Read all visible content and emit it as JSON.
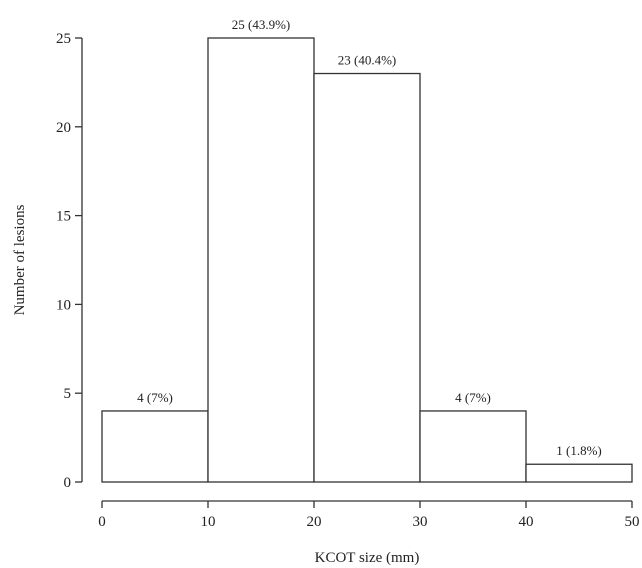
{
  "chart_data": {
    "type": "bar",
    "title": "",
    "xlabel": "KCOT size (mm)",
    "ylabel": "Number of lesions",
    "bins": [
      {
        "x0": 0,
        "x1": 10,
        "value": 4,
        "label": "4 (7%)"
      },
      {
        "x0": 10,
        "x1": 20,
        "value": 25,
        "label": "25 (43.9%)"
      },
      {
        "x0": 20,
        "x1": 30,
        "value": 23,
        "label": "23 (40.4%)"
      },
      {
        "x0": 30,
        "x1": 40,
        "value": 4,
        "label": "4 (7%)"
      },
      {
        "x0": 40,
        "x1": 50,
        "value": 1,
        "label": "1 (1.8%)"
      }
    ],
    "xlim": [
      0,
      50
    ],
    "ylim": [
      0,
      25
    ],
    "xticks": [
      "0",
      "10",
      "20",
      "30",
      "40",
      "50"
    ],
    "yticks": [
      "0",
      "5",
      "10",
      "15",
      "20",
      "25"
    ],
    "grid": false,
    "legend": "none"
  }
}
